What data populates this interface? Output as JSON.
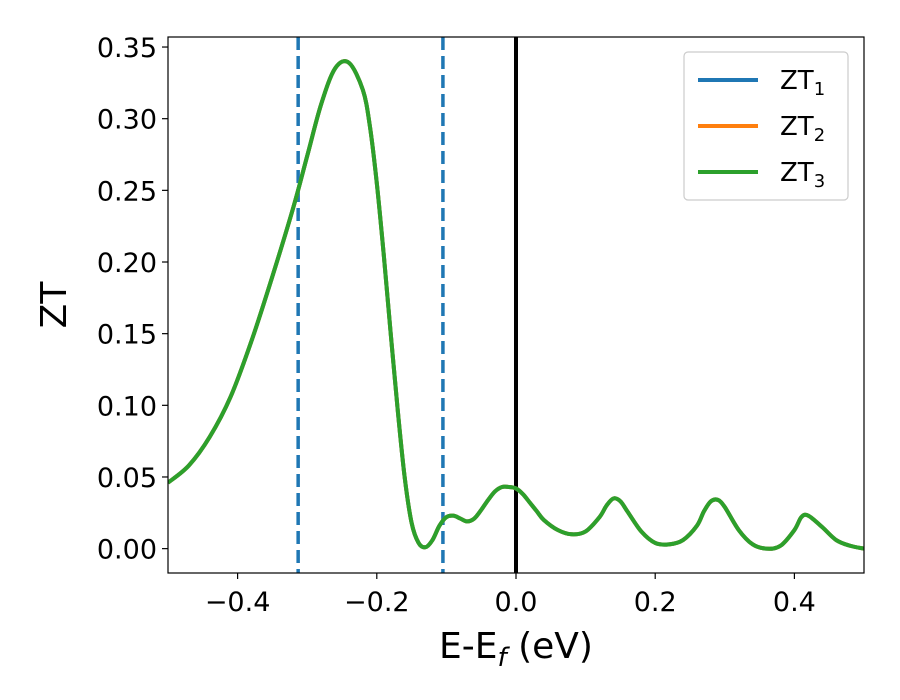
{
  "chart_data": {
    "type": "line",
    "title": "",
    "xlabel": {
      "main": "E-E",
      "sub": "f",
      "rest": " (eV)"
    },
    "ylabel": "ZT",
    "xlim": [
      -0.5,
      0.5
    ],
    "ylim": [
      -0.017,
      0.357
    ],
    "xticks": [
      -0.4,
      -0.2,
      0.0,
      0.2,
      0.4
    ],
    "xtick_labels": [
      "−0.4",
      "−0.2",
      "0.0",
      "0.2",
      "0.4"
    ],
    "yticks": [
      0.0,
      0.05,
      0.1,
      0.15,
      0.2,
      0.25,
      0.3,
      0.35
    ],
    "ytick_labels": [
      "0.00",
      "0.05",
      "0.10",
      "0.15",
      "0.20",
      "0.25",
      "0.30",
      "0.35"
    ],
    "grid": false,
    "legend_position": "top-right",
    "x": [
      -0.5,
      -0.47,
      -0.44,
      -0.41,
      -0.38,
      -0.35,
      -0.32,
      -0.3,
      -0.28,
      -0.26,
      -0.24,
      -0.22,
      -0.21,
      -0.2,
      -0.19,
      -0.18,
      -0.17,
      -0.16,
      -0.15,
      -0.14,
      -0.13,
      -0.12,
      -0.11,
      -0.1,
      -0.09,
      -0.08,
      -0.07,
      -0.06,
      -0.05,
      -0.04,
      -0.03,
      -0.02,
      -0.01,
      0.0,
      0.01,
      0.02,
      0.03,
      0.04,
      0.06,
      0.08,
      0.1,
      0.12,
      0.13,
      0.14,
      0.15,
      0.16,
      0.18,
      0.2,
      0.22,
      0.24,
      0.26,
      0.27,
      0.28,
      0.29,
      0.3,
      0.32,
      0.34,
      0.36,
      0.38,
      0.4,
      0.41,
      0.42,
      0.44,
      0.46,
      0.48,
      0.5
    ],
    "series": [
      {
        "name": "ZT1",
        "label_main": "ZT",
        "label_sub": "1",
        "color": "#1f77b4",
        "y": [
          0.046,
          0.058,
          0.078,
          0.106,
          0.145,
          0.19,
          0.238,
          0.274,
          0.31,
          0.335,
          0.339,
          0.32,
          0.295,
          0.255,
          0.205,
          0.15,
          0.097,
          0.05,
          0.018,
          0.004,
          0.001,
          0.006,
          0.016,
          0.022,
          0.023,
          0.021,
          0.019,
          0.021,
          0.027,
          0.034,
          0.04,
          0.043,
          0.043,
          0.042,
          0.038,
          0.032,
          0.026,
          0.02,
          0.013,
          0.01,
          0.012,
          0.022,
          0.03,
          0.035,
          0.033,
          0.026,
          0.012,
          0.004,
          0.003,
          0.006,
          0.016,
          0.026,
          0.033,
          0.034,
          0.029,
          0.013,
          0.003,
          0.0,
          0.002,
          0.013,
          0.022,
          0.023,
          0.015,
          0.006,
          0.002,
          0.0
        ]
      },
      {
        "name": "ZT2",
        "label_main": "ZT",
        "label_sub": "2",
        "color": "#ff7f0e",
        "y": [
          0.046,
          0.058,
          0.078,
          0.106,
          0.145,
          0.19,
          0.238,
          0.274,
          0.31,
          0.335,
          0.339,
          0.32,
          0.295,
          0.255,
          0.205,
          0.15,
          0.097,
          0.05,
          0.018,
          0.004,
          0.001,
          0.006,
          0.016,
          0.022,
          0.023,
          0.021,
          0.019,
          0.021,
          0.027,
          0.034,
          0.04,
          0.043,
          0.043,
          0.042,
          0.038,
          0.032,
          0.026,
          0.02,
          0.013,
          0.01,
          0.012,
          0.022,
          0.03,
          0.035,
          0.033,
          0.026,
          0.012,
          0.004,
          0.003,
          0.006,
          0.016,
          0.026,
          0.033,
          0.034,
          0.029,
          0.013,
          0.003,
          0.0,
          0.002,
          0.013,
          0.022,
          0.023,
          0.015,
          0.006,
          0.002,
          0.0
        ]
      },
      {
        "name": "ZT3",
        "label_main": "ZT",
        "label_sub": "3",
        "color": "#2ca02c",
        "y": [
          0.046,
          0.058,
          0.078,
          0.106,
          0.145,
          0.19,
          0.238,
          0.274,
          0.31,
          0.335,
          0.339,
          0.32,
          0.295,
          0.255,
          0.205,
          0.15,
          0.097,
          0.05,
          0.018,
          0.004,
          0.001,
          0.006,
          0.016,
          0.022,
          0.023,
          0.021,
          0.019,
          0.021,
          0.027,
          0.034,
          0.04,
          0.043,
          0.043,
          0.042,
          0.038,
          0.032,
          0.026,
          0.02,
          0.013,
          0.01,
          0.012,
          0.022,
          0.03,
          0.035,
          0.033,
          0.026,
          0.012,
          0.004,
          0.003,
          0.006,
          0.016,
          0.026,
          0.033,
          0.034,
          0.029,
          0.013,
          0.003,
          0.0,
          0.002,
          0.013,
          0.022,
          0.023,
          0.015,
          0.006,
          0.002,
          0.0
        ]
      }
    ],
    "vlines": [
      {
        "x": -0.313,
        "style": "dashed",
        "color": "#1f77b4"
      },
      {
        "x": -0.105,
        "style": "dashed",
        "color": "#1f77b4"
      },
      {
        "x": 0.0,
        "style": "solid",
        "color": "#000000"
      }
    ]
  }
}
